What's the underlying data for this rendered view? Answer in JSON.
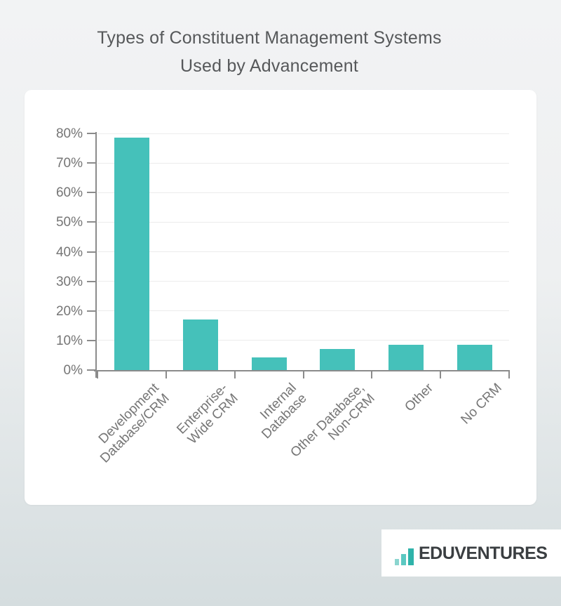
{
  "title": {
    "line1": "Types of Constituent Management Systems",
    "line2": "Used by Advancement"
  },
  "chart_data": {
    "type": "bar",
    "title": "Types of Constituent Management Systems Used by Advancement",
    "categories": [
      "Development Database/CRM",
      "Enterprise-Wide CRM",
      "Internal Database",
      "Other Database, Non-CRM",
      "Other",
      "No CRM"
    ],
    "categories_lines": [
      [
        "Development",
        "Database/CRM"
      ],
      [
        "Enterprise-",
        "Wide CRM"
      ],
      [
        "Internal",
        "Database"
      ],
      [
        "Other Database,",
        "Non-CRM"
      ],
      [
        "Other"
      ],
      [
        "No CRM"
      ]
    ],
    "values": [
      78.5,
      17,
      4.2,
      7.2,
      8.5,
      8.5
    ],
    "unit": "%",
    "xlabel": "",
    "ylabel": "",
    "ylim": [
      0,
      80
    ],
    "ytick_step": 10,
    "ytick_labels": [
      "0%",
      "10%",
      "20%",
      "30%",
      "40%",
      "50%",
      "60%",
      "70%",
      "80%"
    ],
    "grid": true,
    "legend_position": "none",
    "bar_color": "#45c1ba"
  },
  "footer": {
    "brand": "EDUVENTURES",
    "logo_icon": "bar-chart-icon",
    "logo_bar_colors": [
      "#8bd5cf",
      "#5cc8c1",
      "#2fb3aa"
    ]
  },
  "colors": {
    "background_top": "#f2f3f4",
    "background_bottom": "#d5dddf",
    "card": "#ffffff",
    "bar": "#45c1ba",
    "axis": "#8b8b8b",
    "gridline": "#ececec",
    "title_text": "#56585a",
    "label_text": "#757575",
    "brand_text": "#3a3e41"
  }
}
